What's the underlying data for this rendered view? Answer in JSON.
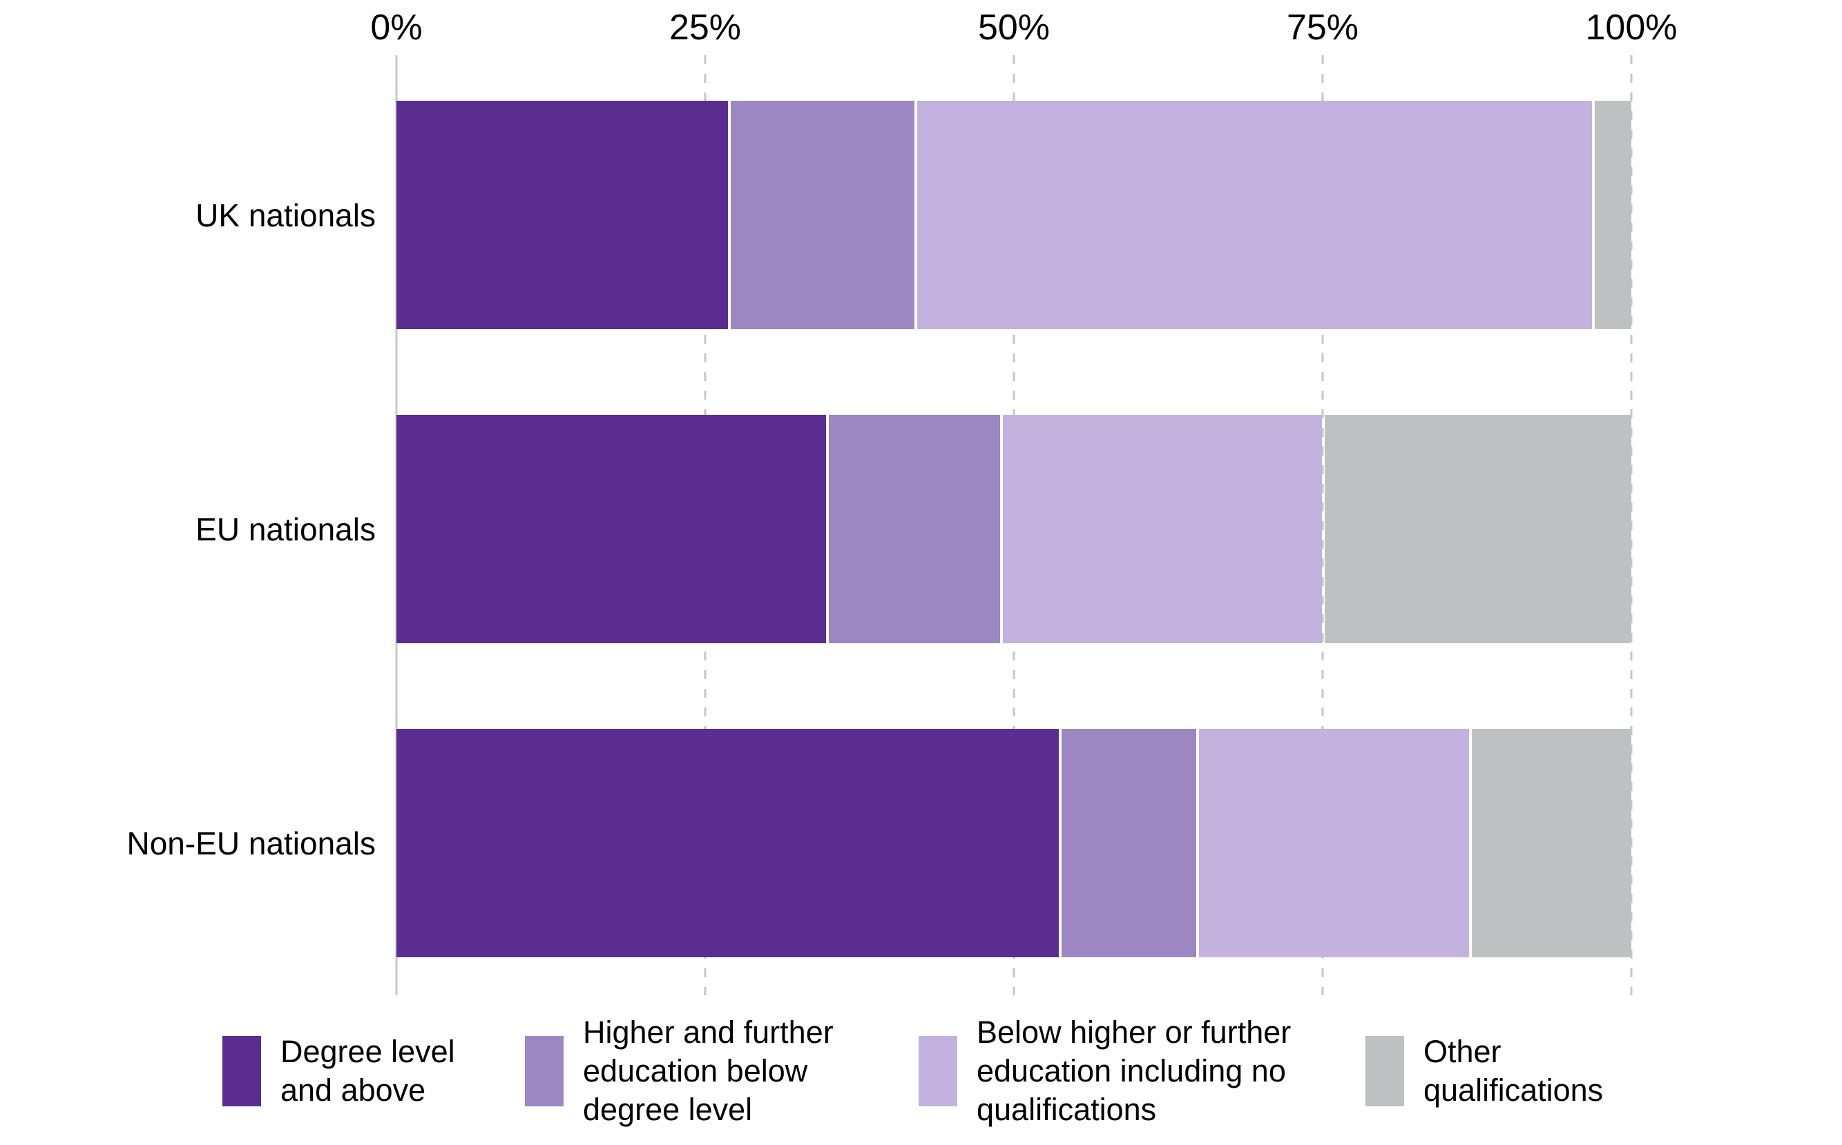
{
  "chart_data": {
    "type": "bar",
    "orientation": "horizontal",
    "stacked": true,
    "unit": "%",
    "title": "",
    "xlabel": "",
    "ylabel": "",
    "xlim": [
      0,
      100
    ],
    "grid": "vertical dashed gridlines at 25, 50, 75, 100; solid axis line at 0",
    "legend_position": "bottom",
    "x_ticks": [
      {
        "label": "0%",
        "value": 0
      },
      {
        "label": "25%",
        "value": 25
      },
      {
        "label": "50%",
        "value": 50
      },
      {
        "label": "75%",
        "value": 75
      },
      {
        "label": "100%",
        "value": 100
      }
    ],
    "categories": [
      "UK nationals",
      "EU nationals",
      "Non-EU nationals"
    ],
    "series": [
      {
        "name": "Degree level and above",
        "color": "#5b2d90",
        "values": [
          27,
          35,
          54
        ]
      },
      {
        "name": "Higher and further education below degree level",
        "color": "#9d87c2",
        "values": [
          15,
          14,
          11
        ]
      },
      {
        "name": "Below higher or further education including no qualifications",
        "color": "#c2b2dd",
        "values": [
          55,
          26,
          22
        ]
      },
      {
        "name": "Other qualifications",
        "color": "#bfc0c2",
        "values": [
          3,
          25,
          13
        ]
      }
    ]
  },
  "legend": {
    "items": [
      {
        "color": "#5b2d90",
        "lines": [
          "Degree level",
          "and above"
        ]
      },
      {
        "color": "#9d87c2",
        "lines": [
          "Higher and further",
          "education below",
          "degree level"
        ]
      },
      {
        "color": "#c2b2dd",
        "lines": [
          "Below higher or further",
          "education including no",
          "qualifications"
        ]
      },
      {
        "color": "#bfc0c2",
        "lines": [
          "Other",
          "qualifications"
        ]
      }
    ]
  }
}
